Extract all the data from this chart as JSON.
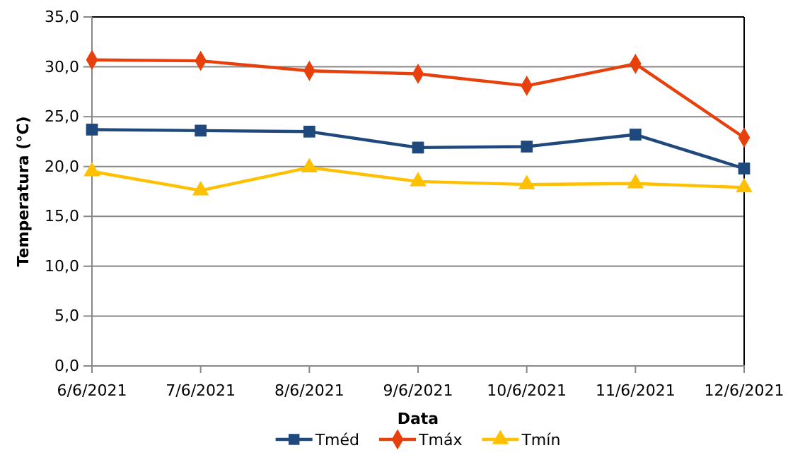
{
  "chart_data": {
    "type": "line",
    "xlabel": "Data",
    "ylabel": "Temperatura (°C)",
    "categories": [
      "6/6/2021",
      "7/6/2021",
      "8/6/2021",
      "9/6/2021",
      "10/6/2021",
      "11/6/2021",
      "12/6/2021"
    ],
    "series": [
      {
        "name": "Tméd",
        "color": "#1f497d",
        "marker": "square",
        "values": [
          23.7,
          23.6,
          23.5,
          21.9,
          22.0,
          23.2,
          19.8
        ]
      },
      {
        "name": "Tmáx",
        "color": "#e8400c",
        "marker": "diamond",
        "values": [
          30.7,
          30.6,
          29.6,
          29.3,
          28.1,
          30.3,
          22.9
        ]
      },
      {
        "name": "Tmín",
        "color": "#ffc000",
        "marker": "triangle",
        "values": [
          19.5,
          17.6,
          19.9,
          18.5,
          18.2,
          18.3,
          17.9
        ]
      }
    ],
    "ylim": [
      0,
      35
    ],
    "yticks": [
      {
        "value": 0,
        "label": "0,0"
      },
      {
        "value": 5,
        "label": "5,0"
      },
      {
        "value": 10,
        "label": "10,0"
      },
      {
        "value": 15,
        "label": "15,0"
      },
      {
        "value": 20,
        "label": "20,0"
      },
      {
        "value": 25,
        "label": "25,0"
      },
      {
        "value": 30,
        "label": "30,0"
      },
      {
        "value": 35,
        "label": "35,0"
      }
    ],
    "grid": "y",
    "legend": "bottom",
    "line_style": "solid"
  }
}
